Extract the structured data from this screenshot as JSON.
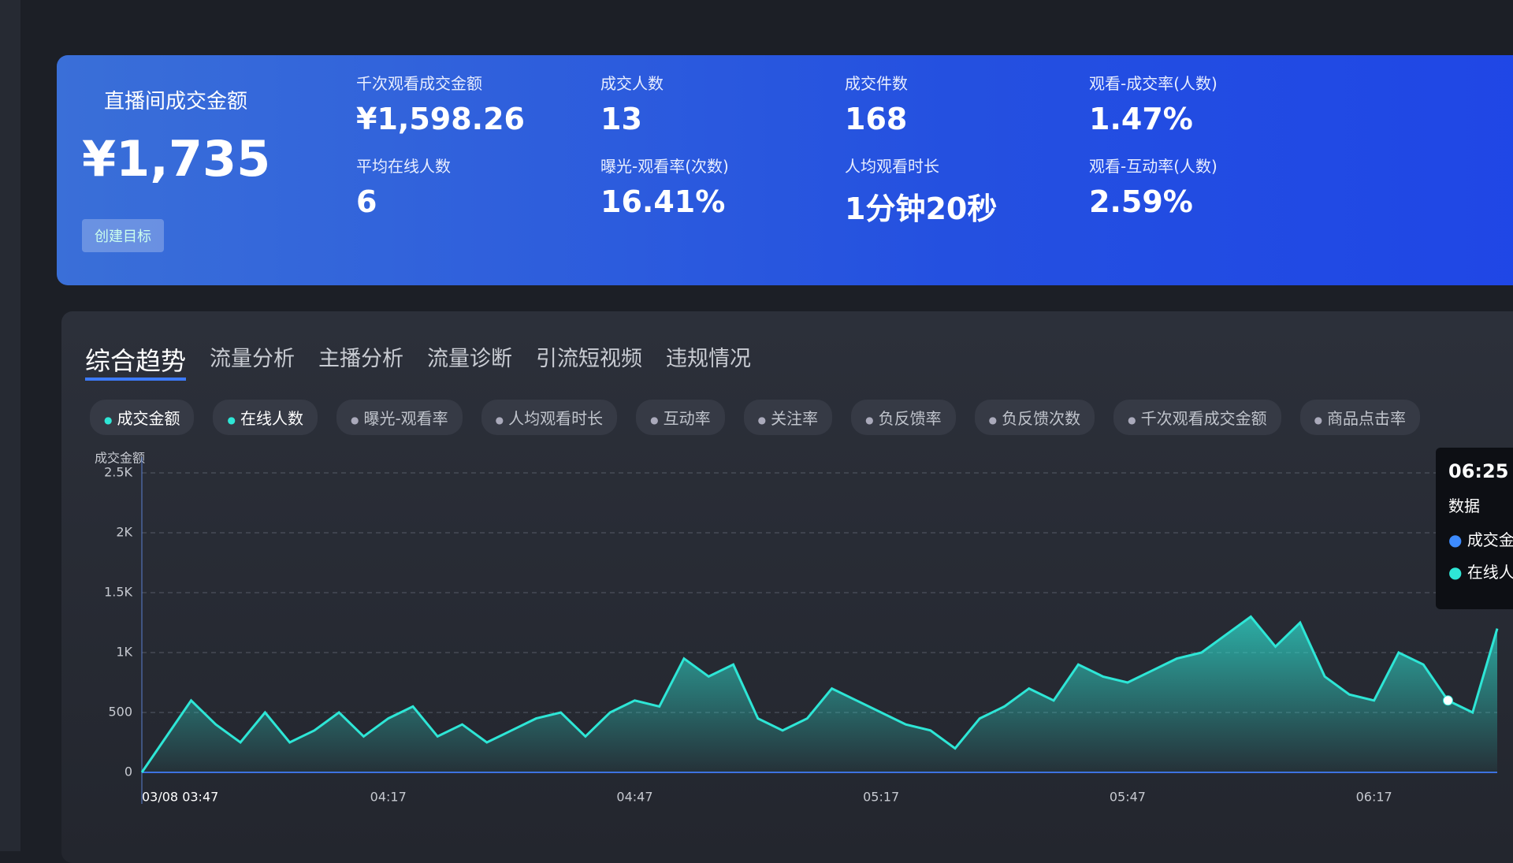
{
  "summary": {
    "title": "直播间成交金额",
    "amount": "¥1,735",
    "button": "创建目标",
    "metrics": [
      {
        "label": "千次观看成交金额",
        "value": "¥1,598.26"
      },
      {
        "label": "成交人数",
        "value": "13"
      },
      {
        "label": "成交件数",
        "value": "168"
      },
      {
        "label": "观看-成交率(人数)",
        "value": "1.47%"
      },
      {
        "label": "平均在线人数",
        "value": "6"
      },
      {
        "label": "曝光-观看率(次数)",
        "value": "16.41%"
      },
      {
        "label": "人均观看时长",
        "value": "1分钟20秒"
      },
      {
        "label": "观看-互动率(人数)",
        "value": "2.59%"
      }
    ]
  },
  "tabs": [
    "综合趋势",
    "流量分析",
    "主播分析",
    "流量诊断",
    "引流短视频",
    "违规情况"
  ],
  "chips": [
    "成交金额",
    "在线人数",
    "曝光-观看率",
    "人均观看时长",
    "互动率",
    "关注率",
    "负反馈率",
    "负反馈次数",
    "千次观看成交金额",
    "商品点击率"
  ],
  "chart_data": {
    "type": "area",
    "ylabel": "成交金额",
    "categories": [
      "03/08 03:47",
      null,
      null,
      null,
      null,
      null,
      null,
      null,
      null,
      null,
      "04:17",
      null,
      null,
      null,
      null,
      null,
      null,
      null,
      null,
      null,
      "04:47",
      null,
      null,
      null,
      null,
      null,
      null,
      null,
      null,
      null,
      "05:17",
      null,
      null,
      null,
      null,
      null,
      null,
      null,
      null,
      null,
      "05:47",
      null,
      null,
      null,
      null,
      null,
      null,
      null,
      null,
      null,
      "06:17",
      null,
      null,
      null,
      null,
      null
    ],
    "series": [
      {
        "color": "#2ee6d6",
        "values": [
          0,
          300,
          600,
          400,
          250,
          500,
          250,
          350,
          500,
          300,
          450,
          550,
          300,
          400,
          250,
          350,
          450,
          500,
          300,
          500,
          600,
          550,
          950,
          800,
          900,
          450,
          350,
          450,
          700,
          600,
          500,
          400,
          350,
          200,
          450,
          550,
          700,
          600,
          900,
          800,
          750,
          850,
          950,
          1000,
          1150,
          1300,
          1050,
          1250,
          800,
          650,
          600,
          1000,
          900,
          600,
          500,
          1200
        ]
      }
    ],
    "ylim": [
      0,
      2500
    ],
    "yticks": [
      0,
      500,
      {
        "value": 1000,
        "label": "1K"
      },
      {
        "value": 1500,
        "label": "1.5K"
      },
      {
        "value": 2000,
        "label": "2K"
      },
      {
        "value": 2500,
        "label": "2.5K"
      }
    ],
    "grid": true,
    "tooltip": {
      "time": "06:25",
      "heading": "数据",
      "items": [
        "成交金额",
        "在线人数"
      ]
    }
  }
}
